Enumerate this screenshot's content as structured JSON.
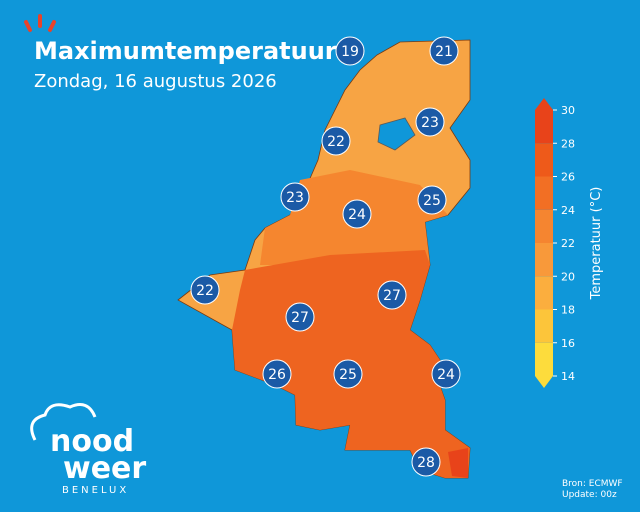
{
  "header": {
    "title": "Maximumtemperatuur",
    "subtitle": "Zondag, 16 augustus 2026"
  },
  "city_temperatures": [
    19,
    21,
    23,
    22,
    23,
    24,
    25,
    22,
    27,
    27,
    26,
    25,
    24,
    28
  ],
  "legend": {
    "label": "Temperatuur (°C)",
    "range": [
      14,
      30
    ],
    "ticks": [
      14,
      16,
      18,
      20,
      22,
      24,
      26,
      28,
      30
    ],
    "colors": [
      "#fddc3c",
      "#fcc53a",
      "#fbae3e",
      "#f8993a",
      "#f58530",
      "#f26f24",
      "#ee5a1a",
      "#e8431a"
    ]
  },
  "logo": {
    "line1": "nood",
    "line2": "weer",
    "region": "BENELUX"
  },
  "footer": {
    "source": "Bron: ECMWF",
    "update": "Update: 00z"
  }
}
